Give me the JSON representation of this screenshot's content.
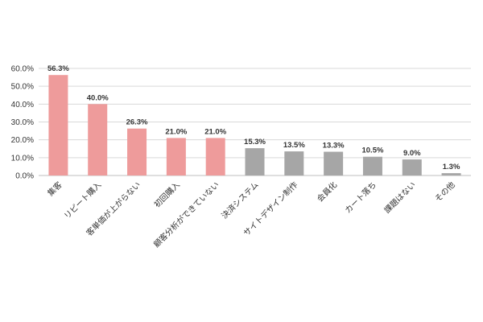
{
  "chart_data": {
    "type": "bar",
    "categories": [
      "集客",
      "リピート購入",
      "客単価が上がらない",
      "初回購入",
      "顧客分析ができていない",
      "決済システム",
      "サイトデザイン制作",
      "会員化",
      "カート落ち",
      "課題はない",
      "その他"
    ],
    "values": [
      56.3,
      40.0,
      26.3,
      21.0,
      21.0,
      15.3,
      13.5,
      13.3,
      10.5,
      9.0,
      1.3
    ],
    "value_labels": [
      "56.3%",
      "40.0%",
      "26.3%",
      "21.0%",
      "21.0%",
      "15.3%",
      "13.5%",
      "13.3%",
      "10.5%",
      "9.0%",
      "1.3%"
    ],
    "y_ticks": [
      0,
      10,
      20,
      30,
      40,
      50,
      60
    ],
    "y_tick_labels": [
      "0.0%",
      "10.0%",
      "20.0%",
      "30.0%",
      "40.0%",
      "50.0%",
      "60.0%"
    ],
    "ylim": [
      0,
      60
    ],
    "grid": true,
    "colors": {
      "highlight": "#ee9b9b",
      "other": "#a6a6a6",
      "grid": "#d9d9d9",
      "axis": "#bfbfbf",
      "text": "#333333"
    },
    "bar_colors": [
      "#ee9b9b",
      "#ee9b9b",
      "#ee9b9b",
      "#ee9b9b",
      "#ee9b9b",
      "#a6a6a6",
      "#a6a6a6",
      "#a6a6a6",
      "#a6a6a6",
      "#a6a6a6",
      "#a6a6a6"
    ]
  }
}
